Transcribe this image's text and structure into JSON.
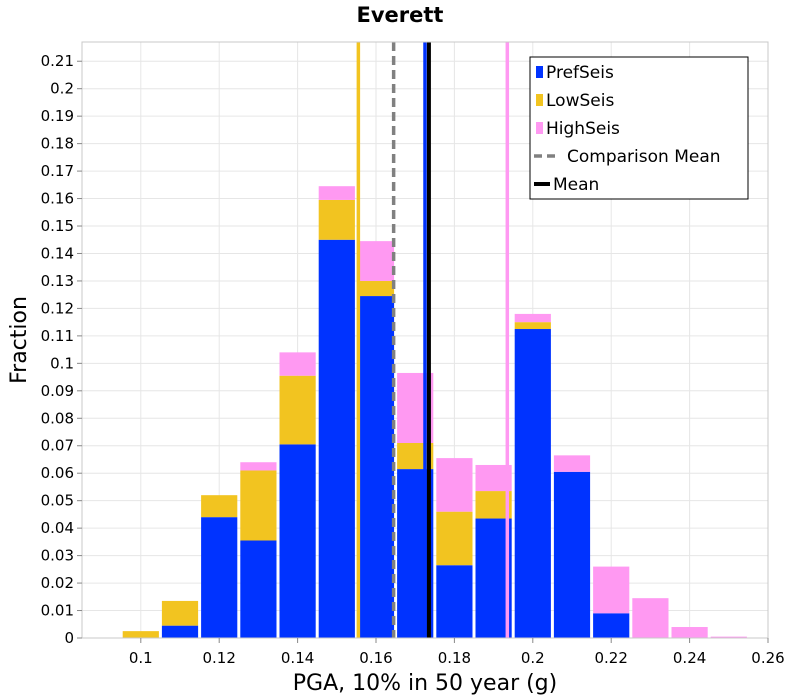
{
  "chart_data": {
    "type": "bar",
    "stacked": true,
    "title": "Everett",
    "xlabel": "PGA, 10% in 50 year (g)",
    "ylabel": "Fraction",
    "xlim": [
      0.085,
      0.26
    ],
    "ylim": [
      0,
      0.217
    ],
    "xticks": [
      "0.1",
      "0.12",
      "0.14",
      "0.16",
      "0.18",
      "0.2",
      "0.22",
      "0.24",
      "0.26"
    ],
    "xtick_values": [
      0.1,
      0.12,
      0.14,
      0.16,
      0.18,
      0.2,
      0.22,
      0.24,
      0.26
    ],
    "yticks": [
      "0",
      "0.01",
      "0.02",
      "0.03",
      "0.04",
      "0.05",
      "0.06",
      "0.07",
      "0.08",
      "0.09",
      "0.1",
      "0.11",
      "0.12",
      "0.13",
      "0.14",
      "0.15",
      "0.16",
      "0.17",
      "0.18",
      "0.19",
      "0.2",
      "0.21"
    ],
    "ytick_values": [
      0,
      0.01,
      0.02,
      0.03,
      0.04,
      0.05,
      0.06,
      0.07,
      0.08,
      0.09,
      0.1,
      0.11,
      0.12,
      0.13,
      0.14,
      0.15,
      0.16,
      0.17,
      0.18,
      0.19,
      0.2,
      0.21
    ],
    "grid": true,
    "legend_position": "top-right",
    "bin_width": 0.01,
    "bin_centers": [
      0.1,
      0.11,
      0.12,
      0.13,
      0.14,
      0.15,
      0.16,
      0.17,
      0.18,
      0.19,
      0.2,
      0.21,
      0.22,
      0.23,
      0.24,
      0.25
    ],
    "series": [
      {
        "name": "PrefSeis",
        "color": "#0033ff",
        "values": [
          0,
          0.0045,
          0.044,
          0.0355,
          0.0705,
          0.145,
          0.1245,
          0.0615,
          0.0265,
          0.0435,
          0.1125,
          0.0605,
          0.009,
          0,
          0,
          0
        ]
      },
      {
        "name": "LowSeis",
        "color": "#f2c420",
        "values": [
          0.0025,
          0.009,
          0.008,
          0.0255,
          0.025,
          0.0145,
          0.0055,
          0.0095,
          0.0195,
          0.01,
          0.0025,
          0,
          0,
          0,
          0,
          0
        ]
      },
      {
        "name": "HighSeis",
        "color": "#ff99f2",
        "values": [
          0,
          0,
          0,
          0.003,
          0.0085,
          0.005,
          0.0145,
          0.0255,
          0.0195,
          0.0095,
          0.003,
          0.006,
          0.017,
          0.0145,
          0.004,
          0.0005
        ]
      }
    ],
    "vertical_lines": [
      {
        "name": "LowSeis mean",
        "x": 0.1555,
        "color": "#f2c420",
        "style": "solid"
      },
      {
        "name": "HighSeis mean",
        "x": 0.1935,
        "color": "#ff99f2",
        "style": "solid"
      },
      {
        "name": "PrefSeis mean",
        "x": 0.1725,
        "color": "#0033ff",
        "style": "solid"
      },
      {
        "name": "Comparison Mean",
        "x": 0.1645,
        "color": "#808080",
        "style": "dashed"
      },
      {
        "name": "Mean",
        "x": 0.1735,
        "color": "#000000",
        "style": "solid"
      }
    ],
    "legend": [
      {
        "label": "PrefSeis",
        "color": "#0033ff",
        "kind": "box"
      },
      {
        "label": "LowSeis",
        "color": "#f2c420",
        "kind": "box"
      },
      {
        "label": "HighSeis",
        "color": "#ff99f2",
        "kind": "box"
      },
      {
        "label": "Comparison Mean",
        "color": "#808080",
        "kind": "dashed-line"
      },
      {
        "label": "Mean",
        "color": "#000000",
        "kind": "line"
      }
    ]
  }
}
